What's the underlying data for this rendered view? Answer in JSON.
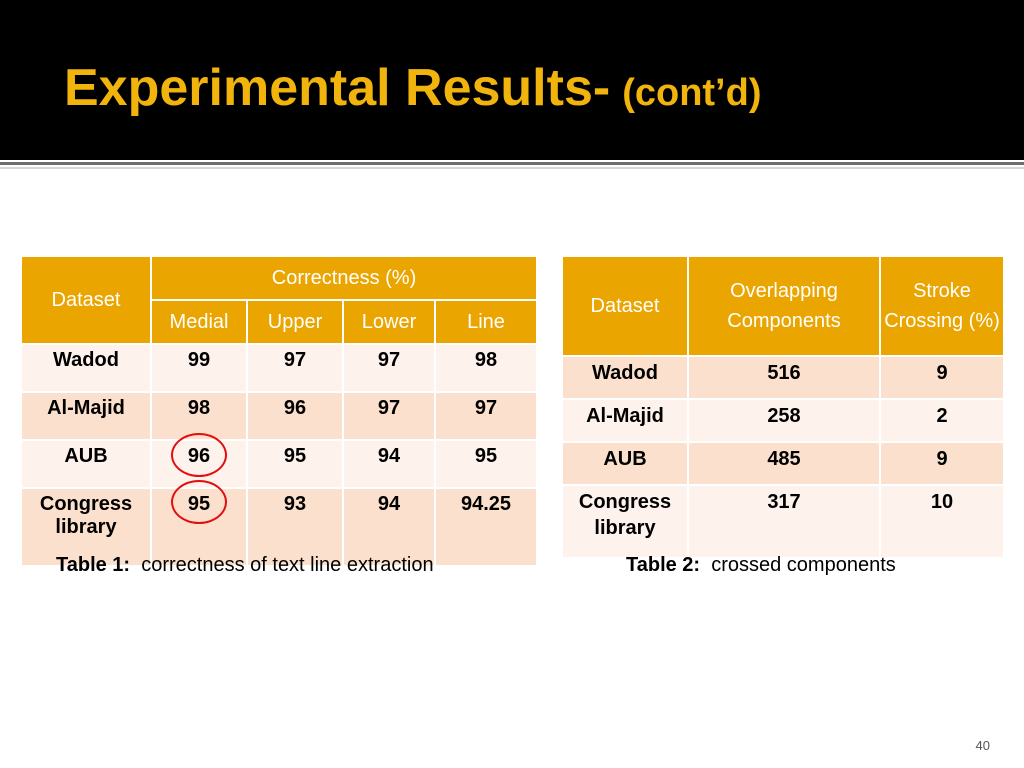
{
  "title": {
    "main": "Experimental Results-",
    "sub": "(cont’d)"
  },
  "table1": {
    "dataset_header": "Dataset",
    "group_header": "Correctness (%)",
    "columns": [
      "Medial",
      "Upper",
      "Lower",
      "Line"
    ],
    "rows": [
      {
        "dataset": "Wadod",
        "values": [
          "99",
          "97",
          "97",
          "98"
        ]
      },
      {
        "dataset": "Al-Majid",
        "values": [
          "98",
          "96",
          "97",
          "97"
        ]
      },
      {
        "dataset": "AUB",
        "values": [
          "96",
          "95",
          "94",
          "95"
        ]
      },
      {
        "dataset": "Congress library",
        "values": [
          "95",
          "93",
          "94",
          "94.25"
        ]
      }
    ],
    "caption_bold": "Table 1:",
    "caption_text": "correctness of text line extraction"
  },
  "table2": {
    "columns": [
      "Dataset",
      "Overlapping Components",
      "Stroke Crossing (%)"
    ],
    "rows": [
      {
        "dataset": "Wadod",
        "values": [
          "516",
          "9"
        ]
      },
      {
        "dataset": "Al-Majid",
        "values": [
          "258",
          "2"
        ]
      },
      {
        "dataset": "AUB",
        "values": [
          "485",
          "9"
        ]
      },
      {
        "dataset": "Congress library",
        "values": [
          "317",
          "10"
        ]
      }
    ],
    "caption_bold": "Table 2:",
    "caption_text": "crossed components"
  },
  "page_number": "40",
  "colors": {
    "title": "#f0b40c",
    "header_fill": "#eaa500",
    "row_light": "#fdf2ec",
    "row_dark": "#fbe1cd",
    "highlight_circle": "#e01010"
  }
}
